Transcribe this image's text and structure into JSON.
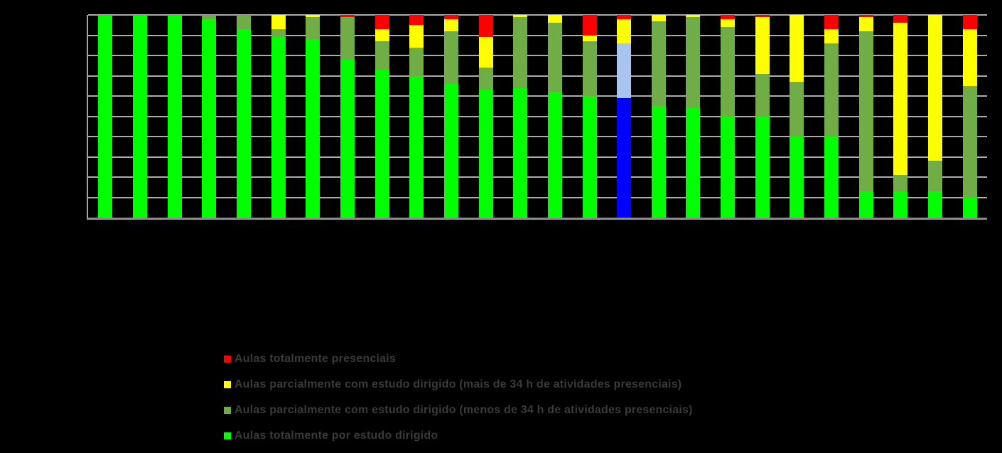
{
  "background": "#000000",
  "colors": {
    "red": "#FF0000",
    "yellow": "#FFFF00",
    "olive": "#70AD47",
    "green": "#00FF00",
    "blue": "#0000FF",
    "lightblue": "#A9C4EE",
    "gridline": "#ABABAB",
    "axis": "#8C8C8C",
    "legend_text": "#3A3A3A"
  },
  "legend": {
    "items": [
      {
        "color_key": "red",
        "label": "Aulas totalmente presenciais"
      },
      {
        "color_key": "yellow",
        "label": "Aulas parcialmente com estudo dirigido (mais de 34 h de atividades presenciais)"
      },
      {
        "color_key": "olive",
        "label": "Aulas parcialmente com estudo dirigido (menos de 34 h de atividades presenciais)"
      },
      {
        "color_key": "green",
        "label": "Aulas totalmente por estudo dirigido"
      }
    ]
  },
  "chart_data": {
    "type": "bar",
    "stacked": true,
    "orientation": "vertical",
    "title": "",
    "xlabel": "",
    "ylabel": "",
    "ylim": [
      0,
      100
    ],
    "unit": "percent",
    "gridline_step": 10,
    "grid": true,
    "x_tick_labels_visible": false,
    "y_tick_labels_visible": false,
    "legend_position": "bottom-left",
    "n_bars": 26,
    "series_keys_bottom_to_top": [
      "green",
      "olive",
      "yellow",
      "red"
    ],
    "highlight_note": "bar 16 is drawn in blue/lightblue instead of green/olive",
    "bars": [
      {
        "segments": [
          [
            "green",
            100
          ]
        ]
      },
      {
        "segments": [
          [
            "green",
            100
          ]
        ]
      },
      {
        "segments": [
          [
            "green",
            100
          ]
        ]
      },
      {
        "segments": [
          [
            "green",
            98
          ],
          [
            "olive",
            2
          ]
        ]
      },
      {
        "segments": [
          [
            "green",
            93
          ],
          [
            "olive",
            7
          ]
        ]
      },
      {
        "segments": [
          [
            "green",
            89
          ],
          [
            "olive",
            4
          ],
          [
            "yellow",
            7
          ]
        ]
      },
      {
        "segments": [
          [
            "green",
            88
          ],
          [
            "olive",
            11
          ],
          [
            "yellow",
            1
          ]
        ]
      },
      {
        "segments": [
          [
            "green",
            78
          ],
          [
            "olive",
            21
          ],
          [
            "red",
            1
          ]
        ]
      },
      {
        "segments": [
          [
            "green",
            73
          ],
          [
            "olive",
            14
          ],
          [
            "yellow",
            6
          ],
          [
            "red",
            7
          ]
        ]
      },
      {
        "segments": [
          [
            "green",
            70
          ],
          [
            "olive",
            14
          ],
          [
            "yellow",
            11
          ],
          [
            "red",
            5
          ]
        ]
      },
      {
        "segments": [
          [
            "green",
            66
          ],
          [
            "olive",
            26
          ],
          [
            "yellow",
            6
          ],
          [
            "red",
            2
          ]
        ]
      },
      {
        "segments": [
          [
            "green",
            63
          ],
          [
            "olive",
            11
          ],
          [
            "yellow",
            15
          ],
          [
            "red",
            11
          ]
        ]
      },
      {
        "segments": [
          [
            "green",
            64
          ],
          [
            "olive",
            35
          ],
          [
            "yellow",
            1
          ]
        ]
      },
      {
        "segments": [
          [
            "green",
            62
          ],
          [
            "olive",
            34
          ],
          [
            "yellow",
            4
          ]
        ]
      },
      {
        "segments": [
          [
            "green",
            60
          ],
          [
            "olive",
            27
          ],
          [
            "yellow",
            3
          ],
          [
            "red",
            10
          ]
        ]
      },
      {
        "segments": [
          [
            "blue",
            59
          ],
          [
            "lightblue",
            27
          ],
          [
            "yellow",
            12
          ],
          [
            "red",
            2
          ]
        ]
      },
      {
        "segments": [
          [
            "green",
            55
          ],
          [
            "olive",
            42
          ],
          [
            "yellow",
            3
          ]
        ]
      },
      {
        "segments": [
          [
            "green",
            54
          ],
          [
            "olive",
            45
          ],
          [
            "yellow",
            1
          ]
        ]
      },
      {
        "segments": [
          [
            "green",
            50
          ],
          [
            "olive",
            44
          ],
          [
            "yellow",
            4
          ],
          [
            "red",
            2
          ]
        ]
      },
      {
        "segments": [
          [
            "green",
            50
          ],
          [
            "olive",
            21
          ],
          [
            "yellow",
            28
          ],
          [
            "red",
            1
          ]
        ]
      },
      {
        "segments": [
          [
            "green",
            40
          ],
          [
            "olive",
            27
          ],
          [
            "yellow",
            33
          ]
        ]
      },
      {
        "segments": [
          [
            "green",
            40
          ],
          [
            "olive",
            46
          ],
          [
            "yellow",
            7
          ],
          [
            "red",
            7
          ]
        ]
      },
      {
        "segments": [
          [
            "green",
            13
          ],
          [
            "olive",
            79
          ],
          [
            "yellow",
            7
          ],
          [
            "red",
            1
          ]
        ]
      },
      {
        "segments": [
          [
            "green",
            13
          ],
          [
            "olive",
            8
          ],
          [
            "yellow",
            75
          ],
          [
            "red",
            4
          ]
        ]
      },
      {
        "segments": [
          [
            "green",
            13
          ],
          [
            "olive",
            15
          ],
          [
            "yellow",
            72
          ]
        ]
      },
      {
        "segments": [
          [
            "green",
            10
          ],
          [
            "olive",
            55
          ],
          [
            "yellow",
            28
          ],
          [
            "red",
            7
          ]
        ]
      }
    ]
  }
}
